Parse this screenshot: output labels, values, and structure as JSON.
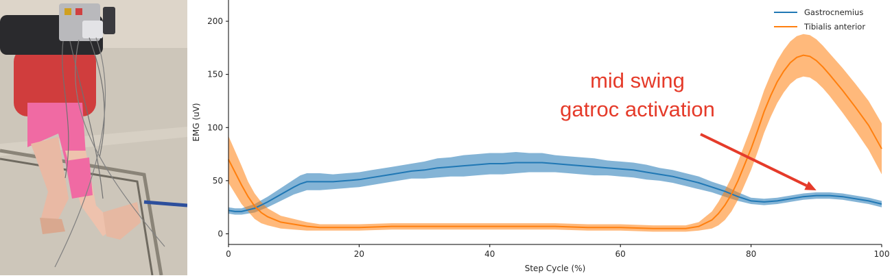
{
  "chart_data": {
    "type": "line",
    "title": "",
    "xlabel": "Step Cycle (%)",
    "ylabel": "EMG (uV)",
    "xlim": [
      0,
      100
    ],
    "ylim": [
      -10,
      220
    ],
    "xticks": [
      0,
      20,
      40,
      60,
      80,
      100
    ],
    "yticks": [
      0,
      50,
      100,
      150,
      200
    ],
    "grid": false,
    "legend_position": "top-right",
    "series": [
      {
        "name": "Gastrocnemius",
        "color": "#1f77b4",
        "x": [
          0,
          1,
          2,
          4,
          6,
          8,
          10,
          11,
          12,
          14,
          16,
          18,
          20,
          22,
          25,
          28,
          30,
          32,
          34,
          36,
          38,
          40,
          42,
          44,
          46,
          48,
          50,
          52,
          54,
          56,
          58,
          60,
          62,
          64,
          66,
          68,
          70,
          72,
          74,
          76,
          78,
          80,
          82,
          84,
          86,
          88,
          90,
          92,
          94,
          96,
          98,
          100
        ],
        "y": [
          22,
          21,
          21,
          24,
          30,
          37,
          44,
          47,
          49,
          49,
          49,
          50,
          51,
          53,
          56,
          59,
          60,
          62,
          63,
          64,
          65,
          66,
          66,
          67,
          67,
          67,
          66,
          65,
          64,
          63,
          62,
          61,
          60,
          58,
          56,
          54,
          51,
          48,
          44,
          40,
          35,
          31,
          30,
          31,
          33,
          35,
          36,
          36,
          35,
          33,
          31,
          28
        ],
        "err": [
          3,
          3,
          3,
          4,
          5,
          6,
          7,
          8,
          8,
          8,
          7,
          7,
          7,
          7,
          7,
          7,
          8,
          9,
          9,
          10,
          10,
          10,
          10,
          10,
          9,
          9,
          8,
          8,
          8,
          8,
          7,
          7,
          7,
          7,
          6,
          6,
          6,
          6,
          5,
          5,
          4,
          3,
          3,
          3,
          3,
          3,
          3,
          3,
          3,
          3,
          3,
          3
        ]
      },
      {
        "name": "Tibialis anterior",
        "color": "#ff7f0e",
        "x": [
          0,
          1,
          2,
          3,
          4,
          5,
          6,
          8,
          10,
          12,
          14,
          16,
          20,
          25,
          30,
          35,
          40,
          45,
          50,
          55,
          60,
          65,
          70,
          72,
          74,
          75,
          76,
          77,
          78,
          79,
          80,
          81,
          82,
          83,
          84,
          85,
          86,
          87,
          88,
          89,
          90,
          91,
          92,
          94,
          96,
          98,
          100
        ],
        "y": [
          70,
          58,
          46,
          35,
          26,
          20,
          16,
          11,
          9,
          7,
          6,
          6,
          6,
          7,
          7,
          7,
          7,
          7,
          7,
          6,
          6,
          5,
          5,
          7,
          13,
          19,
          27,
          37,
          50,
          65,
          80,
          97,
          115,
          130,
          143,
          153,
          161,
          166,
          168,
          167,
          163,
          157,
          150,
          135,
          119,
          102,
          80
        ],
        "err": [
          22,
          20,
          18,
          14,
          12,
          10,
          8,
          6,
          5,
          4,
          3,
          3,
          3,
          3,
          3,
          3,
          3,
          3,
          3,
          3,
          3,
          3,
          3,
          4,
          8,
          11,
          14,
          16,
          18,
          19,
          20,
          20,
          20,
          20,
          20,
          20,
          20,
          20,
          20,
          20,
          20,
          20,
          20,
          21,
          22,
          23,
          24
        ]
      }
    ],
    "annotation": {
      "lines": [
        "mid swing",
        "gatroc activation"
      ],
      "color": "#e53b2a",
      "arrow_target": {
        "x": 90,
        "y": 37
      }
    }
  }
}
